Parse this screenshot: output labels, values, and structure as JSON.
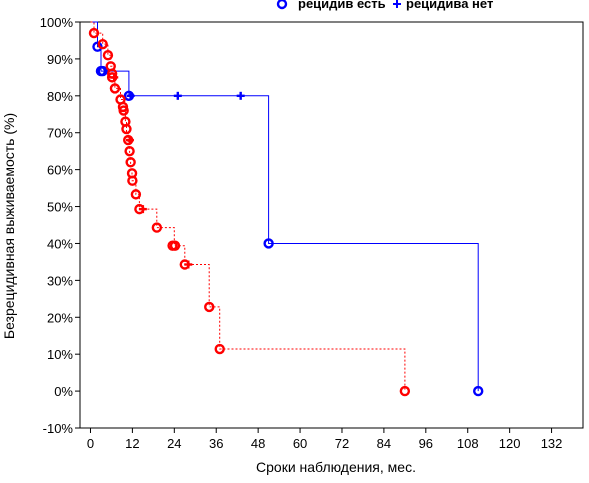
{
  "chart_data": {
    "type": "line",
    "title": "",
    "xlabel": "Сроки наблюдения, мес.",
    "ylabel": "Безрецидивная выживаемость (%)",
    "xlim": [
      -3,
      141
    ],
    "ylim": [
      -10,
      100
    ],
    "xticks": [
      "0",
      "12",
      "24",
      "36",
      "48",
      "60",
      "72",
      "84",
      "96",
      "108",
      "120",
      "132"
    ],
    "yticks": [
      "-10%",
      "0%",
      "10%",
      "20%",
      "30%",
      "40%",
      "50%",
      "60%",
      "70%",
      "80%",
      "90%",
      "100%"
    ],
    "grid": false,
    "legend": {
      "placement": "top-right",
      "entries": [
        {
          "symbol": "o",
          "label": "рецидив есть",
          "color": "#0000ff"
        },
        {
          "symbol": "+",
          "label": "рецидива нет",
          "color": "#0000ff"
        }
      ]
    },
    "series": [
      {
        "color": "#0000ff",
        "step": [
          [
            0,
            100
          ],
          [
            2,
            100
          ],
          [
            2,
            93.3
          ],
          [
            3,
            93.3
          ],
          [
            3,
            86.7
          ],
          [
            11,
            86.7
          ],
          [
            11,
            80
          ],
          [
            51,
            80
          ],
          [
            51,
            40
          ],
          [
            111,
            40
          ],
          [
            111,
            0
          ]
        ],
        "events": [
          [
            2,
            93.3
          ],
          [
            3,
            86.7
          ],
          [
            3.5,
            86.7
          ],
          [
            11,
            80
          ],
          [
            51,
            40
          ],
          [
            111,
            0
          ]
        ],
        "censored": [
          [
            11.5,
            80
          ],
          [
            25,
            80
          ],
          [
            43,
            80
          ]
        ]
      },
      {
        "color": "#ff0000",
        "step": [
          [
            0,
            100
          ],
          [
            1,
            100
          ],
          [
            1,
            97
          ],
          [
            3.5,
            97
          ],
          [
            3.5,
            94
          ],
          [
            5,
            94
          ],
          [
            5,
            91
          ],
          [
            5.8,
            91
          ],
          [
            5.8,
            88
          ],
          [
            6.2,
            88
          ],
          [
            6.2,
            85
          ],
          [
            7,
            85
          ],
          [
            7,
            82
          ],
          [
            8.6,
            82
          ],
          [
            8.6,
            79
          ],
          [
            9.3,
            79
          ],
          [
            9.3,
            76
          ],
          [
            10,
            76
          ],
          [
            10,
            73
          ],
          [
            10.3,
            73
          ],
          [
            10.3,
            70
          ],
          [
            10.8,
            70
          ],
          [
            10.8,
            67
          ],
          [
            11.2,
            67
          ],
          [
            11.2,
            64
          ],
          [
            11.5,
            64
          ],
          [
            11.5,
            61
          ],
          [
            11.9,
            61
          ],
          [
            11.9,
            57
          ],
          [
            13,
            57
          ],
          [
            13,
            53.3
          ],
          [
            14,
            53.3
          ],
          [
            14,
            49.3
          ],
          [
            19,
            49.3
          ],
          [
            19,
            44.3
          ],
          [
            24,
            44.3
          ],
          [
            24,
            39.4
          ],
          [
            27,
            39.4
          ],
          [
            27,
            34.3
          ],
          [
            34,
            34.3
          ],
          [
            34,
            22.8
          ],
          [
            37,
            22.8
          ],
          [
            37,
            11.4
          ],
          [
            90,
            11.4
          ],
          [
            90,
            0
          ]
        ],
        "events": [
          [
            1,
            97
          ],
          [
            3.5,
            94
          ],
          [
            5,
            91
          ],
          [
            5.8,
            88
          ],
          [
            6.2,
            86
          ],
          [
            6.2,
            85
          ],
          [
            7,
            82
          ],
          [
            8.6,
            79
          ],
          [
            9.3,
            77
          ],
          [
            9.5,
            76
          ],
          [
            10,
            73
          ],
          [
            10.3,
            71
          ],
          [
            10.8,
            68
          ],
          [
            11.2,
            65
          ],
          [
            11.5,
            62
          ],
          [
            11.9,
            59
          ],
          [
            12,
            57
          ],
          [
            13,
            53.3
          ],
          [
            14,
            49.3
          ],
          [
            19,
            44.3
          ],
          [
            23.5,
            39.4
          ],
          [
            24.2,
            39.4
          ],
          [
            27,
            34.3
          ],
          [
            34,
            22.8
          ],
          [
            37,
            11.4
          ],
          [
            90,
            0
          ]
        ],
        "censored": [
          [
            6.8,
            85
          ],
          [
            11.3,
            68
          ],
          [
            15,
            49.3
          ],
          [
            28,
            34.3
          ]
        ]
      }
    ]
  }
}
